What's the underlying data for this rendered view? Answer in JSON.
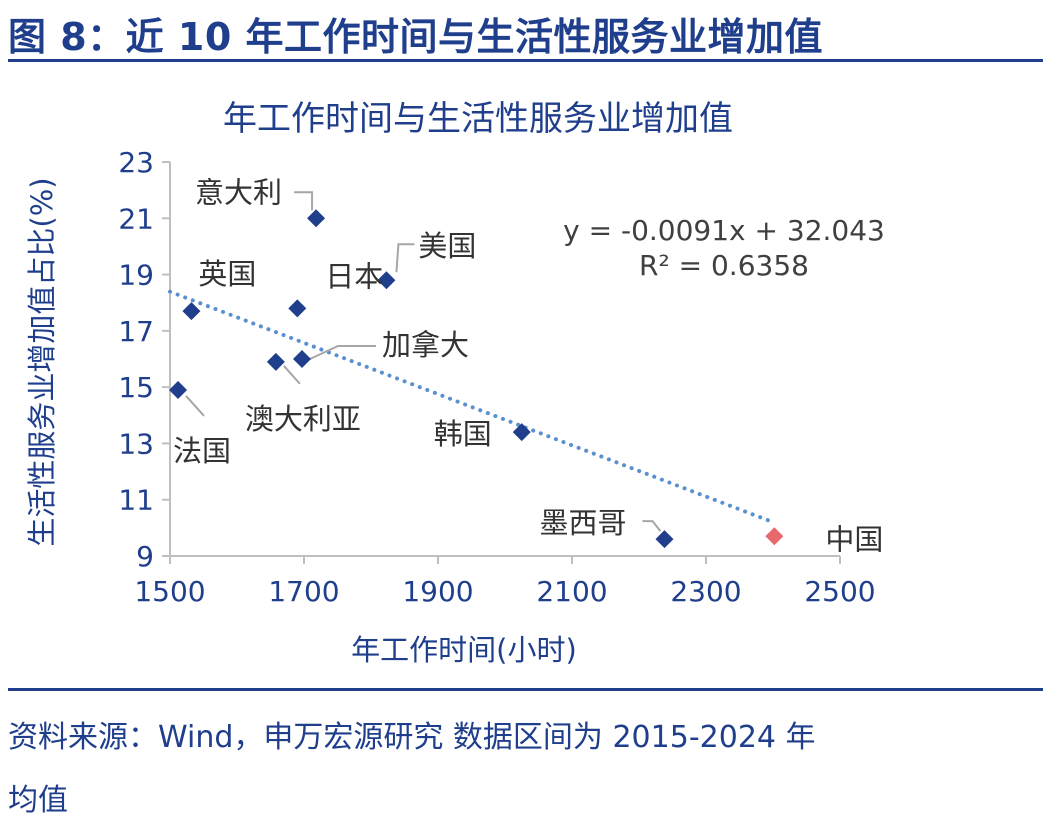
{
  "figure_title": "图 8：近 10 年工作时间与生活性服务业增加值",
  "source_line1": "资料来源：Wind，申万宏源研究  数据区间为 2015-2024 年",
  "source_line2": "均值",
  "colors": {
    "title": "#1f3e8c",
    "marker": "#1f3e8c",
    "highlight": "#e8696b",
    "trendline": "#5a8fd0",
    "label": "#333333",
    "equation": "#404040",
    "leader": "#a6a6a6",
    "axis": "#bfbfbf"
  },
  "chart_data": {
    "type": "scatter",
    "title": "年工作时间与生活性服务业增加值",
    "xlabel": "年工作时间(小时)",
    "ylabel": "生活性服务业增加值占比(%)",
    "xlim": [
      1500,
      2500
    ],
    "ylim": [
      9,
      23
    ],
    "xticks": [
      1500,
      1700,
      1900,
      2100,
      2300,
      2500
    ],
    "yticks": [
      9,
      11,
      13,
      15,
      17,
      19,
      21,
      23
    ],
    "grid": false,
    "legend": "none",
    "points": [
      {
        "label": "意大利",
        "x": 1718,
        "y": 21.0
      },
      {
        "label": "美国",
        "x": 1823,
        "y": 18.8
      },
      {
        "label": "日本",
        "x": 1690,
        "y": 17.8
      },
      {
        "label": "英国",
        "x": 1532,
        "y": 17.7
      },
      {
        "label": "加拿大",
        "x": 1697,
        "y": 16.0
      },
      {
        "label": "澳大利亚",
        "x": 1658,
        "y": 15.9
      },
      {
        "label": "法国",
        "x": 1512,
        "y": 14.9
      },
      {
        "label": "韩国",
        "x": 2025,
        "y": 13.4
      },
      {
        "label": "墨西哥",
        "x": 2238,
        "y": 9.6
      },
      {
        "label": "中国",
        "x": 2402,
        "y": 9.7,
        "highlight": true
      }
    ],
    "trendline": {
      "slope": -0.0091,
      "intercept": 32.043,
      "x_range": [
        1500,
        2402
      ]
    },
    "annotation": {
      "equation": "y = -0.0091x + 32.043",
      "r_squared": "R² = 0.6358"
    }
  }
}
